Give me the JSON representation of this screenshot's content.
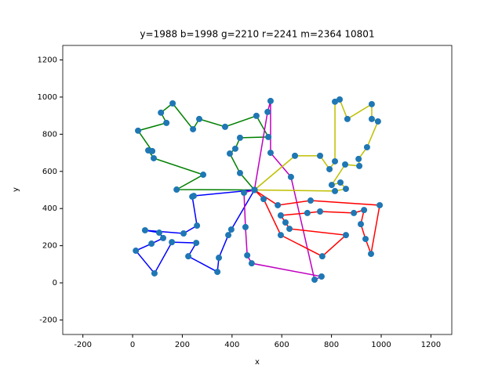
{
  "chart_data": {
    "type": "line",
    "title": "y=1988 b=1998 g=2210 r=2241 m=2364 10801",
    "xlabel": "x",
    "ylabel": "y",
    "xlim": [
      -281,
      1284
    ],
    "ylim": [
      -278,
      1278
    ],
    "xticks": [
      -200,
      0,
      200,
      400,
      600,
      800,
      1000,
      1200
    ],
    "yticks": [
      -200,
      0,
      200,
      400,
      600,
      800,
      1000,
      1200
    ],
    "marker_color": "#1f77b4",
    "series": [
      {
        "color": "#008000",
        "x": [
          490,
          177,
          284,
          85,
          63,
          79,
          22,
          136,
          114,
          161,
          243,
          268,
          372,
          498,
          546,
          432,
          413,
          391,
          432,
          490
        ],
        "y": [
          500,
          502,
          582,
          671,
          713,
          709,
          819,
          861,
          916,
          966,
          827,
          882,
          840,
          899,
          785,
          781,
          722,
          696,
          591,
          500
        ]
      },
      {
        "color": "#0000ff",
        "x": [
          490,
          246,
          240,
          259,
          205,
          50,
          107,
          123,
          76,
          13,
          88,
          158,
          256,
          224,
          341,
          347,
          385,
          397,
          490
        ],
        "y": [
          500,
          468,
          464,
          308,
          266,
          283,
          270,
          241,
          211,
          173,
          51,
          219,
          215,
          143,
          59,
          135,
          257,
          287,
          500
        ]
      },
      {
        "color": "#bf00bf",
        "x": [
          490,
          448,
          454,
          461,
          479,
          760,
          732,
          637,
          555,
          555,
          543,
          490
        ],
        "y": [
          500,
          485,
          300,
          148,
          105,
          34,
          17,
          570,
          700,
          979,
          920,
          500
        ]
      },
      {
        "color": "#bfbf00",
        "x": [
          490,
          653,
          754,
          792,
          814,
          814,
          833,
          864,
          962,
          962,
          987,
          943,
          909,
          912,
          855,
          801,
          836,
          858,
          814,
          490
        ],
        "y": [
          500,
          684,
          684,
          612,
          654,
          975,
          987,
          882,
          962,
          882,
          869,
          730,
          667,
          629,
          637,
          527,
          540,
          506,
          494,
          500
        ]
      },
      {
        "color": "#ff0000",
        "x": [
          490,
          584,
          716,
          994,
          959,
          937,
          918,
          931,
          890,
          754,
          703,
          596,
          615,
          631,
          858,
          763,
          596,
          527,
          490
        ],
        "y": [
          500,
          418,
          443,
          418,
          156,
          236,
          316,
          392,
          376,
          384,
          376,
          363,
          325,
          291,
          257,
          143,
          257,
          451,
          500
        ]
      }
    ]
  }
}
